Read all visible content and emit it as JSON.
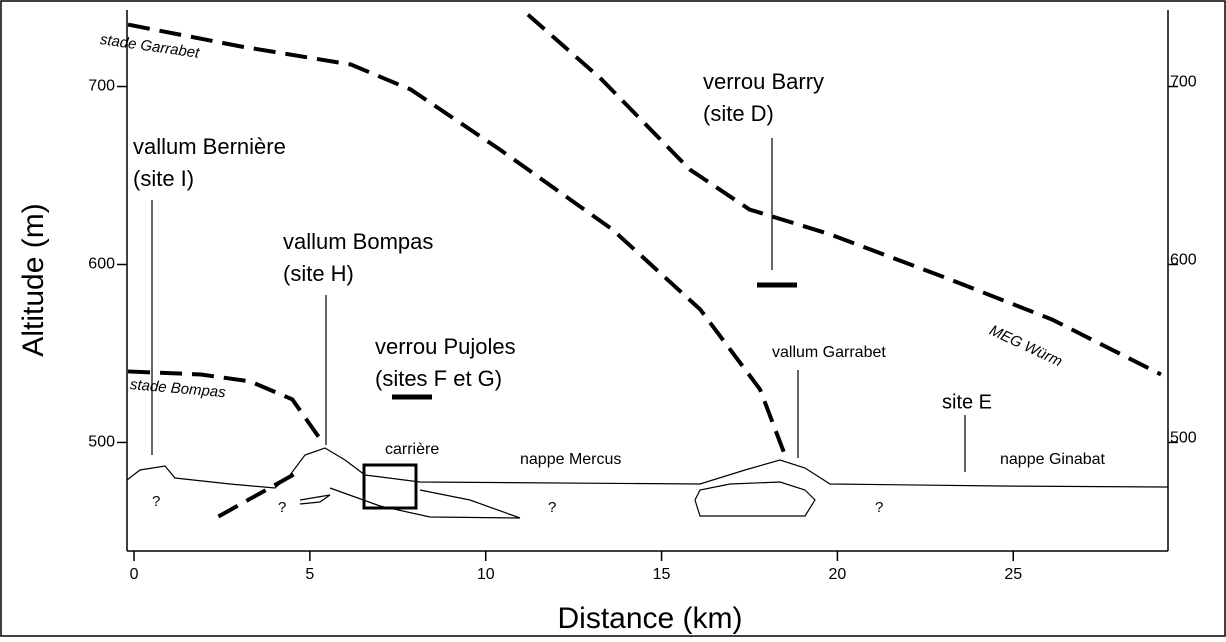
{
  "chart_data": {
    "type": "line",
    "x_label": "Distance (km)",
    "y_label": "Altitude (m)",
    "xlim": [
      -0.2,
      29.4
    ],
    "ylim": [
      439,
      743
    ],
    "xticks": [
      0,
      5,
      10,
      15,
      20,
      25
    ],
    "yticks": [
      500,
      600,
      700
    ],
    "series": [
      {
        "name": "stade Garrabet",
        "color": "#000000",
        "x": [
          -0.17,
          3.04,
          6.16,
          7.87,
          10.4,
          13.6,
          16.1,
          17.8,
          18.5
        ],
        "values": [
          734.8,
          722.5,
          712.4,
          698.3,
          664.6,
          619.7,
          574.7,
          529.8,
          493.3
        ]
      },
      {
        "name": "MEG Würm",
        "color": "#000000",
        "x": [
          11.2,
          13.3,
          15.8,
          17.5,
          19.8,
          23.2,
          26.1,
          29.2
        ],
        "values": [
          740.4,
          703.9,
          653.4,
          630.9,
          616.9,
          591.6,
          569.1,
          538.2
        ]
      },
      {
        "name": "stade Bompas",
        "color": "#000000",
        "x": [
          -0.17,
          1.9,
          3.3,
          4.5,
          5.3,
          null,
          2.4,
          4.7
        ],
        "values": [
          539.9,
          538.2,
          534.3,
          524.2,
          501.7,
          null,
          458.4,
          483.7
        ]
      }
    ],
    "annotations": [
      "vallum Bernière",
      "(site I)",
      "vallum Bompas",
      "(site H)",
      "verrou Pujoles",
      "(sites F et G)",
      "verrou Barry",
      "(site D)",
      "vallum Garrabet",
      "site E",
      "carrière",
      "nappe Mercus",
      "nappe Ginabat",
      "?",
      "?",
      "?",
      "?"
    ]
  }
}
